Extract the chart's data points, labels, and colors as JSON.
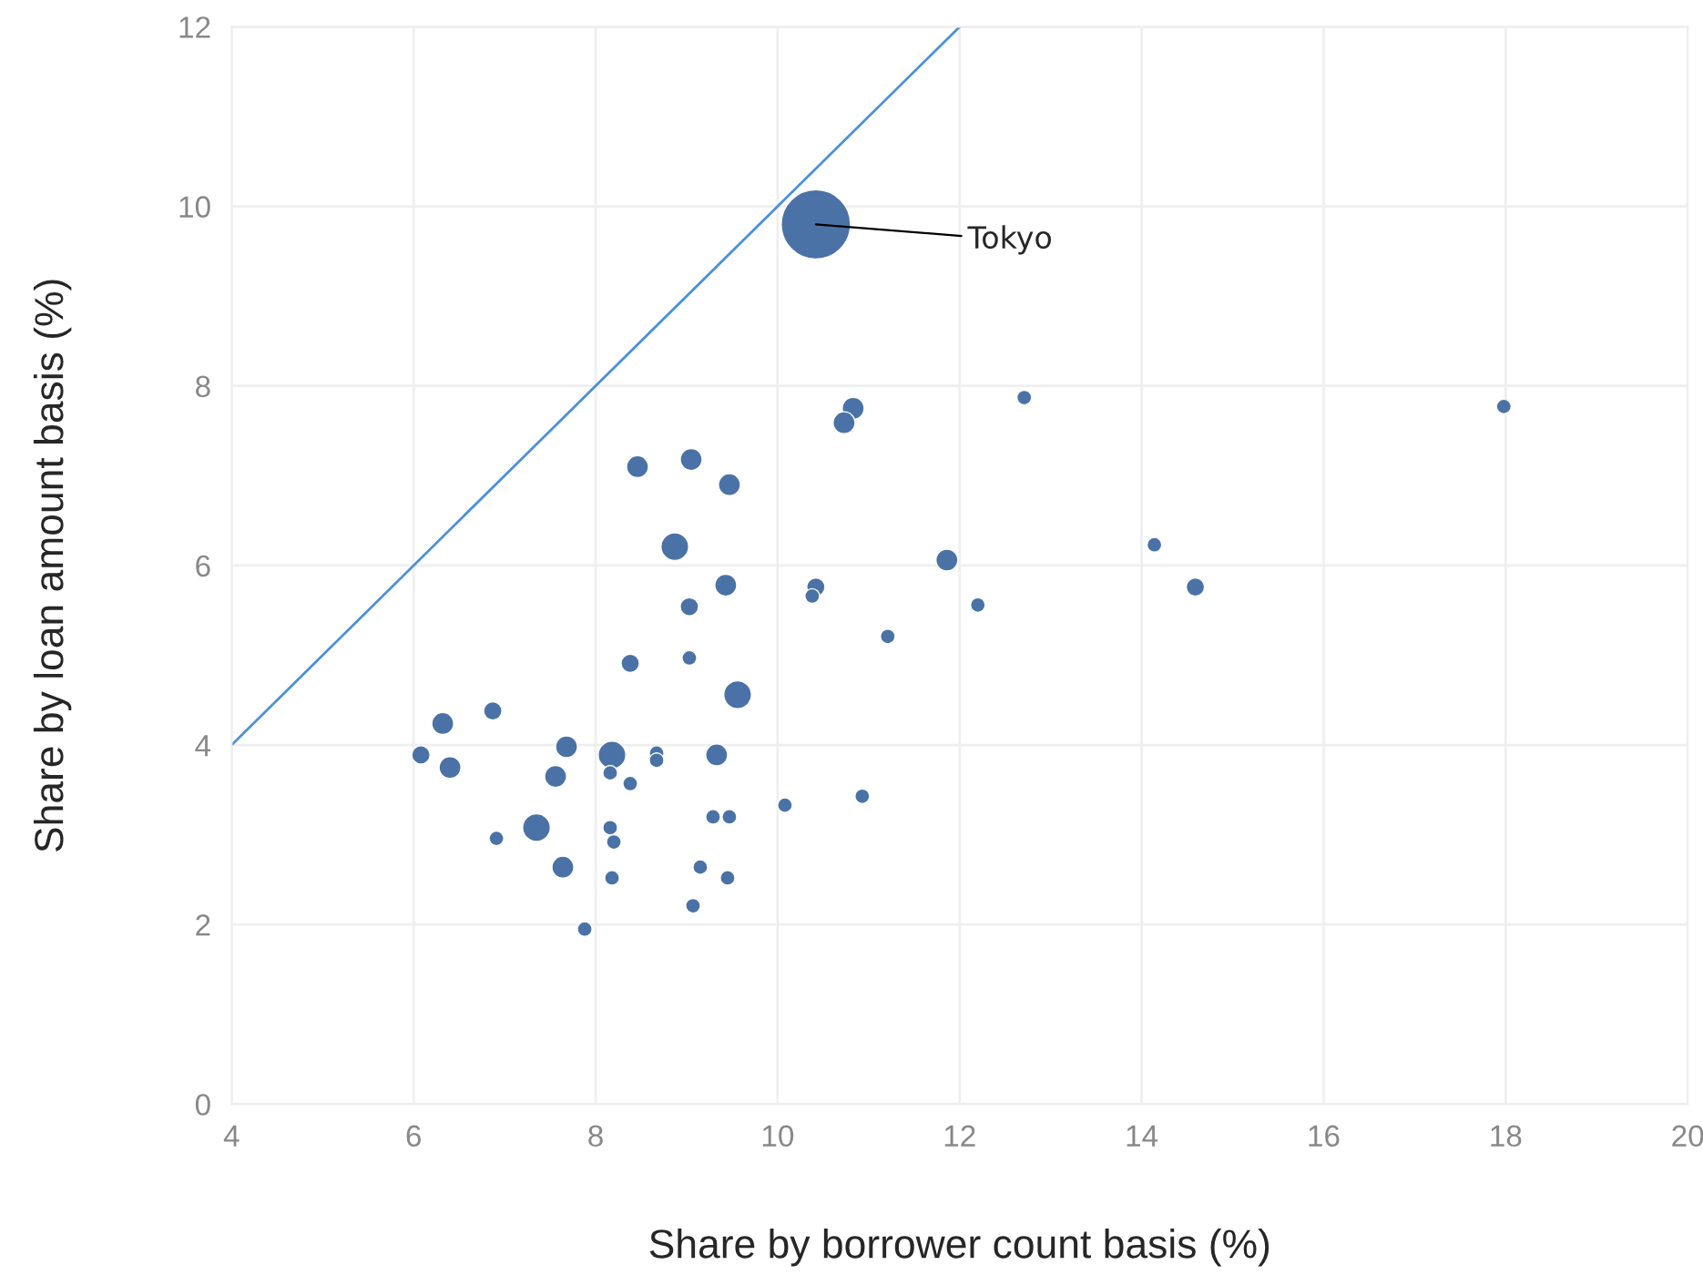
{
  "chart_data": {
    "type": "bubble",
    "xlabel": "Share by borrower count basis (%)",
    "ylabel": "Share by loan amount basis (%)",
    "xlim": [
      4,
      20
    ],
    "xticks": [
      4,
      6,
      8,
      10,
      12,
      14,
      16,
      18,
      20
    ],
    "ylim": [
      0,
      12
    ],
    "yticks": [
      0,
      2,
      4,
      6,
      8,
      10,
      12
    ],
    "grid": true,
    "annotations": [
      {
        "text": "Tokyo",
        "x": 10.42,
        "y": 9.8
      }
    ],
    "series": [
      {
        "color": "#4a72a6",
        "x": [
          10.42,
          10.83,
          10.73,
          12.71,
          17.98,
          8.46,
          9.05,
          9.47,
          8.87,
          11.86,
          14.14,
          14.59,
          9.43,
          10.42,
          10.38,
          12.2,
          9.03,
          11.21,
          9.03,
          8.38,
          9.56,
          6.87,
          6.32,
          6.08,
          6.4,
          7.68,
          7.56,
          8.18,
          8.16,
          8.38,
          8.67,
          8.67,
          9.33,
          10.08,
          10.93,
          9.29,
          9.47,
          6.91,
          7.35,
          8.16,
          8.2,
          7.64,
          9.15,
          9.45,
          8.18,
          9.07,
          7.88
        ],
        "values": [
          9.8,
          7.75,
          7.59,
          7.87,
          7.77,
          7.1,
          7.18,
          6.9,
          6.21,
          6.06,
          6.23,
          5.76,
          5.78,
          5.76,
          5.66,
          5.56,
          5.54,
          5.21,
          4.97,
          4.91,
          4.56,
          4.38,
          4.24,
          3.89,
          3.75,
          3.98,
          3.65,
          3.89,
          3.69,
          3.57,
          3.91,
          3.83,
          3.89,
          3.33,
          3.43,
          3.2,
          3.2,
          2.96,
          3.08,
          3.08,
          2.92,
          2.64,
          2.64,
          2.52,
          2.52,
          2.21,
          1.95
        ],
        "sizes": [
          1,
          0.1,
          0.1,
          0.045,
          0.045,
          0.1,
          0.1,
          0.1,
          0.16,
          0.1,
          0.045,
          0.07,
          0.1,
          0.07,
          0.045,
          0.045,
          0.07,
          0.045,
          0.045,
          0.07,
          0.16,
          0.07,
          0.1,
          0.07,
          0.1,
          0.1,
          0.1,
          0.16,
          0.045,
          0.045,
          0.045,
          0.045,
          0.1,
          0.045,
          0.045,
          0.045,
          0.045,
          0.045,
          0.16,
          0.045,
          0.045,
          0.1,
          0.045,
          0.045,
          0.045,
          0.045,
          0.045
        ]
      },
      {
        "type": "line",
        "color": "#4a90d9",
        "x": [
          4,
          12
        ],
        "values": [
          4,
          12
        ]
      }
    ]
  }
}
